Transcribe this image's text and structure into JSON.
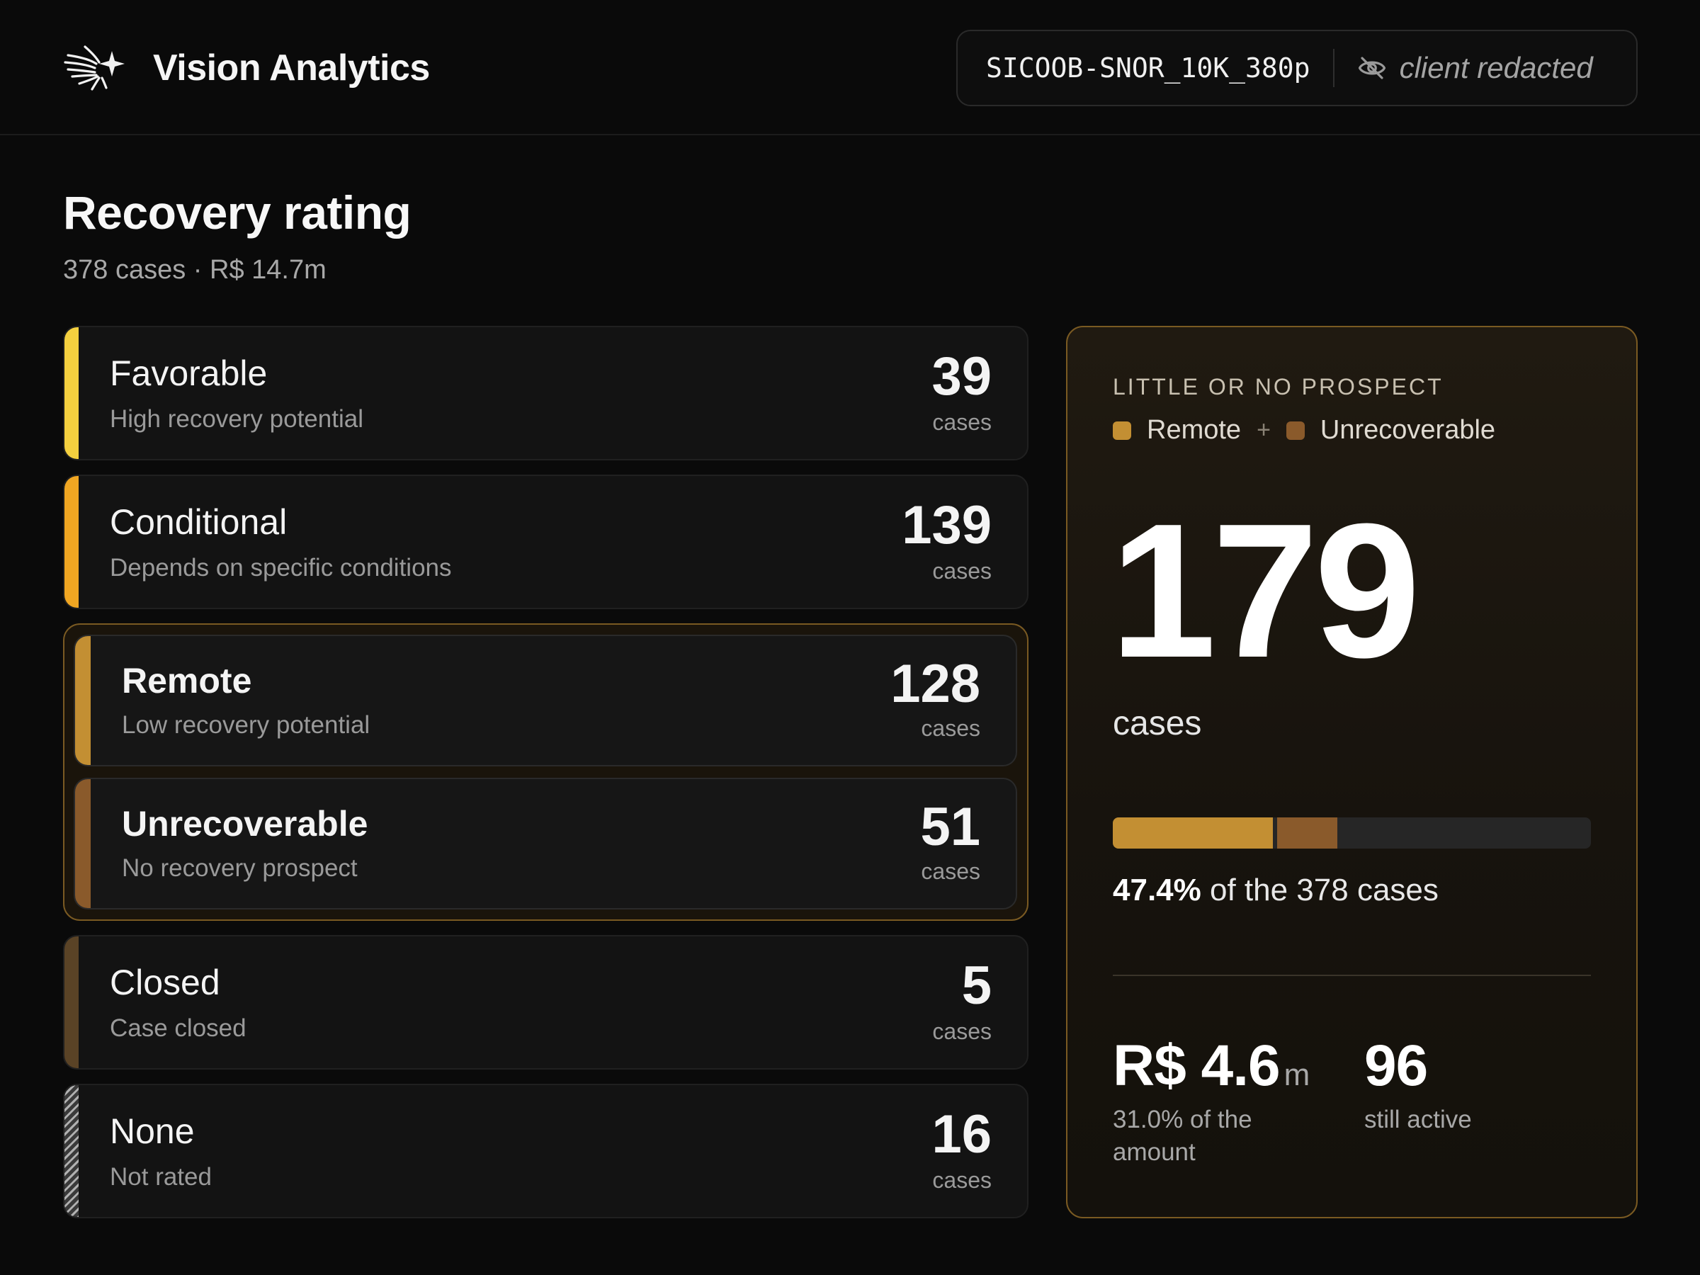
{
  "header": {
    "app_name": "Vision Analytics",
    "dataset_id": "SICOOB-SNOR_10K_380p",
    "client_label": "client redacted",
    "logo_icon": "starburst-logo-icon",
    "redact_icon": "eye-off-icon"
  },
  "page": {
    "title": "Recovery rating",
    "subtitle": "378 cases · R$ 14.7m"
  },
  "ratings": [
    {
      "name": "Favorable",
      "description": "High recovery potential",
      "count": "39",
      "unit": "cases",
      "color": "#f4d03f"
    },
    {
      "name": "Conditional",
      "description": "Depends on specific conditions",
      "count": "139",
      "unit": "cases",
      "color": "#f0a622"
    },
    {
      "name": "Remote",
      "description": "Low recovery potential",
      "count": "128",
      "unit": "cases",
      "color": "#c38f33"
    },
    {
      "name": "Unrecoverable",
      "description": "No recovery prospect",
      "count": "51",
      "unit": "cases",
      "color": "#8a5a2b"
    },
    {
      "name": "Closed",
      "description": "Case closed",
      "count": "5",
      "unit": "cases",
      "color": "#5a4326"
    },
    {
      "name": "None",
      "description": "Not rated",
      "count": "16",
      "unit": "cases",
      "color": "striped"
    }
  ],
  "summary": {
    "kicker": "LITTLE OR NO PROSPECT",
    "legend": [
      {
        "label": "Remote",
        "color": "#c38f33"
      },
      {
        "label": "Unrecoverable",
        "color": "#8a5a2b"
      }
    ],
    "legend_plus": "+",
    "total": "179",
    "total_unit": "cases",
    "progress": {
      "remote_cases": 128,
      "unrecoverable_cases": 51,
      "total_cases": 378
    },
    "share_pct": "47.4%",
    "share_text": "of the 378 cases",
    "amount_value": "R$ 4.6",
    "amount_unit": "m",
    "amount_label": "31.0% of the amount",
    "active_value": "96",
    "active_label": "still active"
  }
}
